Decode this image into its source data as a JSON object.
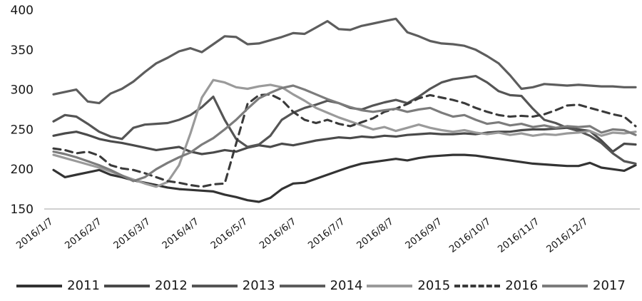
{
  "chart_data": {
    "type": "line",
    "title": "",
    "xlabel": "",
    "ylabel": "",
    "ylim": [
      150,
      400
    ],
    "y_ticks": [
      400,
      350,
      300,
      250,
      200,
      150
    ],
    "x_tick_labels": [
      "2016/1/7",
      "2016/2/7",
      "2016/3/7",
      "2016/4/7",
      "2016/5/7",
      "2016/6/7",
      "2016/7/7",
      "2016/8/7",
      "2016/9/7",
      "2016/10/7",
      "2016/11/7",
      "2016/12/7"
    ],
    "grid": "off",
    "legend_position": "bottom",
    "axis_line_color": "#b3b3b3",
    "series": [
      {
        "name": "2011",
        "color": "#333333",
        "dash": false,
        "values": [
          199,
          190,
          193,
          196,
          199,
          193,
          190,
          186,
          183,
          180,
          177,
          175,
          174,
          173,
          172,
          168,
          165,
          161,
          159,
          164,
          175,
          182,
          183,
          188,
          193,
          198,
          203,
          207,
          209,
          211,
          213,
          211,
          214,
          216,
          217,
          218,
          218,
          217,
          215,
          213,
          211,
          209,
          207,
          206,
          205,
          204,
          204,
          208,
          202,
          200,
          198,
          205
        ]
      },
      {
        "name": "2012",
        "color": "#4a4a4a",
        "dash": false,
        "values": [
          242,
          245,
          247,
          243,
          238,
          235,
          233,
          230,
          227,
          224,
          226,
          228,
          222,
          219,
          221,
          224,
          222,
          227,
          230,
          228,
          232,
          230,
          233,
          236,
          238,
          240,
          239,
          241,
          240,
          242,
          241,
          243,
          244,
          245,
          244,
          244,
          245,
          244,
          246,
          247,
          247,
          249,
          250,
          250,
          251,
          252,
          250,
          248,
          236,
          222,
          232,
          231
        ]
      },
      {
        "name": "2013",
        "color": "#555555",
        "dash": false,
        "values": [
          260,
          268,
          266,
          257,
          247,
          241,
          238,
          252,
          256,
          257,
          258,
          262,
          268,
          278,
          291,
          262,
          238,
          228,
          231,
          242,
          262,
          271,
          277,
          281,
          286,
          283,
          277,
          275,
          280,
          284,
          287,
          283,
          291,
          301,
          309,
          313,
          315,
          317,
          309,
          298,
          293,
          292,
          276,
          262,
          258,
          252,
          248,
          242,
          233,
          220,
          210,
          207
        ]
      },
      {
        "name": "2014",
        "color": "#5d5d5d",
        "dash": false,
        "values": [
          294,
          297,
          300,
          285,
          283,
          295,
          301,
          310,
          322,
          333,
          340,
          348,
          352,
          347,
          357,
          367,
          366,
          357,
          358,
          362,
          366,
          371,
          370,
          378,
          386,
          376,
          375,
          380,
          383,
          386,
          389,
          372,
          367,
          361,
          358,
          357,
          355,
          350,
          342,
          333,
          318,
          301,
          303,
          307,
          306,
          305,
          306,
          305,
          304,
          304,
          303,
          303
        ]
      },
      {
        "name": "2015",
        "color": "#9a9a9a",
        "dash": false,
        "values": [
          218,
          214,
          210,
          206,
          202,
          197,
          192,
          187,
          182,
          178,
          184,
          205,
          245,
          290,
          312,
          309,
          303,
          301,
          304,
          306,
          303,
          294,
          286,
          277,
          271,
          265,
          260,
          255,
          250,
          253,
          248,
          252,
          256,
          252,
          249,
          247,
          249,
          246,
          244,
          246,
          243,
          245,
          242,
          244,
          243,
          245,
          246,
          248,
          242,
          246,
          245,
          247
        ]
      },
      {
        "name": "2016",
        "color": "#3a3a3a",
        "dash": true,
        "values": [
          226,
          224,
          220,
          222,
          217,
          205,
          201,
          199,
          195,
          190,
          185,
          183,
          180,
          178,
          181,
          182,
          232,
          282,
          293,
          294,
          287,
          272,
          262,
          258,
          262,
          257,
          254,
          259,
          264,
          272,
          276,
          282,
          289,
          293,
          290,
          287,
          283,
          277,
          272,
          268,
          266,
          267,
          266,
          269,
          274,
          280,
          281,
          277,
          273,
          269,
          266,
          254
        ]
      },
      {
        "name": "2017",
        "color": "#7c7c7c",
        "dash": false,
        "values": [
          222,
          219,
          215,
          210,
          205,
          199,
          192,
          185,
          190,
          200,
          208,
          215,
          221,
          231,
          239,
          250,
          262,
          276,
          289,
          296,
          302,
          305,
          300,
          294,
          288,
          283,
          278,
          274,
          272,
          274,
          276,
          272,
          275,
          277,
          271,
          266,
          268,
          262,
          257,
          259,
          255,
          257,
          253,
          255,
          252,
          254,
          253,
          254,
          246,
          250,
          249,
          243
        ]
      }
    ],
    "legend": [
      "2011",
      "2012",
      "2013",
      "2014",
      "2015",
      "2016",
      "2017"
    ]
  }
}
